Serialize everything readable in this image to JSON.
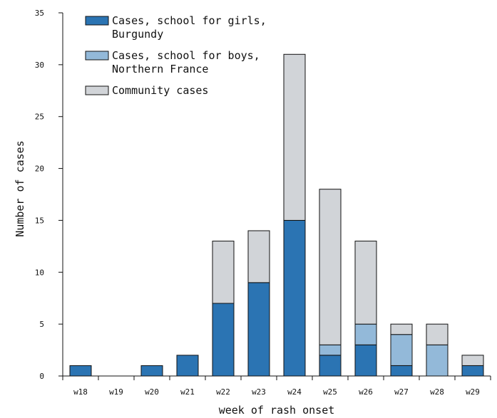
{
  "chart_data": {
    "type": "bar",
    "stacked": true,
    "title": "",
    "xlabel": "week of rash onset",
    "ylabel": "Number of cases",
    "ylim": [
      0,
      35
    ],
    "yticks": [
      0,
      5,
      10,
      15,
      20,
      25,
      30,
      35
    ],
    "grid": false,
    "legend_position": "top-left",
    "categories": [
      "w18",
      "w19",
      "w20",
      "w21",
      "w22",
      "w23",
      "w24",
      "w25",
      "w26",
      "w27",
      "w28",
      "w29"
    ],
    "series": [
      {
        "name_lines": [
          "Cases, school for girls,",
          "Burgundy"
        ],
        "color": "#2b74b3",
        "values": [
          1,
          0,
          1,
          2,
          7,
          9,
          15,
          2,
          3,
          1,
          0,
          1
        ]
      },
      {
        "name_lines": [
          "Cases, school for boys,",
          "Northern France"
        ],
        "color": "#93b9d9",
        "values": [
          0,
          0,
          0,
          0,
          0,
          0,
          0,
          1,
          2,
          3,
          3,
          0
        ]
      },
      {
        "name_lines": [
          "Community cases"
        ],
        "color": "#d1d4d8",
        "values": [
          0,
          0,
          0,
          0,
          6,
          5,
          16,
          15,
          8,
          1,
          2,
          1
        ]
      }
    ]
  }
}
